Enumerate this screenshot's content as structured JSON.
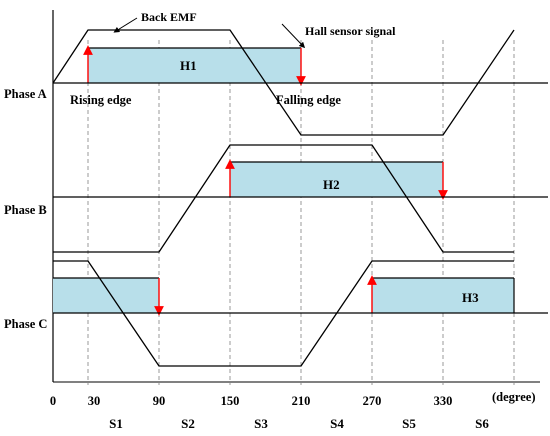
{
  "annotations": {
    "back_emf": "Back EMF",
    "hall_sensor_signal": "Hall sensor signal",
    "rising_edge": "Rising edge",
    "falling_edge": "Falling edge"
  },
  "phases": [
    {
      "label": "Phase A",
      "hall_label": "H1"
    },
    {
      "label": "Phase B",
      "hall_label": "H2"
    },
    {
      "label": "Phase C",
      "hall_label": "H3"
    }
  ],
  "x_axis": {
    "ticks": [
      "0",
      "30",
      "90",
      "150",
      "210",
      "270",
      "330"
    ],
    "unit": "(degree)"
  },
  "sectors": [
    "S1",
    "S2",
    "S3",
    "S4",
    "S5",
    "S6"
  ],
  "colors": {
    "hall_fill": "#b8dfea",
    "hall_edge_arrow": "#ff0000",
    "waveform": "#000000",
    "dashed_guides": "#999999"
  }
}
